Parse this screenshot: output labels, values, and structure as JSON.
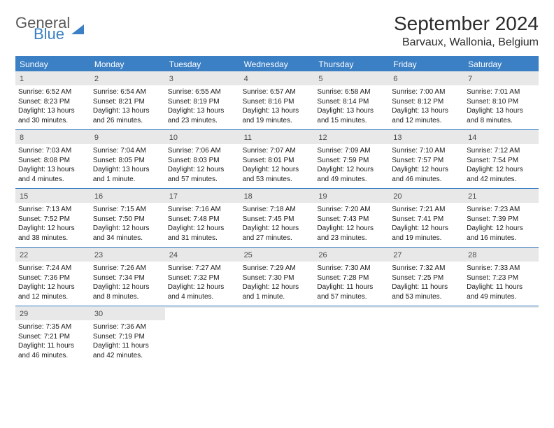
{
  "brand": {
    "line1": "General",
    "line2": "Blue"
  },
  "title": "September 2024",
  "location": "Barvaux, Wallonia, Belgium",
  "colors": {
    "accent": "#3b7fc4",
    "header_text": "#ffffff",
    "daynum_bg": "#e8e8e8",
    "text": "#1a1a1a",
    "title_text": "#2b2b2b",
    "background": "#ffffff"
  },
  "typography": {
    "month_title_pt": 28,
    "location_pt": 16,
    "dow_pt": 12,
    "daynum_pt": 11,
    "info_pt": 10
  },
  "layout": {
    "columns": 7,
    "rows": 5
  },
  "days_of_week": [
    "Sunday",
    "Monday",
    "Tuesday",
    "Wednesday",
    "Thursday",
    "Friday",
    "Saturday"
  ],
  "weeks": [
    [
      {
        "n": "1",
        "sunrise": "Sunrise: 6:52 AM",
        "sunset": "Sunset: 8:23 PM",
        "day": "Daylight: 13 hours and 30 minutes."
      },
      {
        "n": "2",
        "sunrise": "Sunrise: 6:54 AM",
        "sunset": "Sunset: 8:21 PM",
        "day": "Daylight: 13 hours and 26 minutes."
      },
      {
        "n": "3",
        "sunrise": "Sunrise: 6:55 AM",
        "sunset": "Sunset: 8:19 PM",
        "day": "Daylight: 13 hours and 23 minutes."
      },
      {
        "n": "4",
        "sunrise": "Sunrise: 6:57 AM",
        "sunset": "Sunset: 8:16 PM",
        "day": "Daylight: 13 hours and 19 minutes."
      },
      {
        "n": "5",
        "sunrise": "Sunrise: 6:58 AM",
        "sunset": "Sunset: 8:14 PM",
        "day": "Daylight: 13 hours and 15 minutes."
      },
      {
        "n": "6",
        "sunrise": "Sunrise: 7:00 AM",
        "sunset": "Sunset: 8:12 PM",
        "day": "Daylight: 13 hours and 12 minutes."
      },
      {
        "n": "7",
        "sunrise": "Sunrise: 7:01 AM",
        "sunset": "Sunset: 8:10 PM",
        "day": "Daylight: 13 hours and 8 minutes."
      }
    ],
    [
      {
        "n": "8",
        "sunrise": "Sunrise: 7:03 AM",
        "sunset": "Sunset: 8:08 PM",
        "day": "Daylight: 13 hours and 4 minutes."
      },
      {
        "n": "9",
        "sunrise": "Sunrise: 7:04 AM",
        "sunset": "Sunset: 8:05 PM",
        "day": "Daylight: 13 hours and 1 minute."
      },
      {
        "n": "10",
        "sunrise": "Sunrise: 7:06 AM",
        "sunset": "Sunset: 8:03 PM",
        "day": "Daylight: 12 hours and 57 minutes."
      },
      {
        "n": "11",
        "sunrise": "Sunrise: 7:07 AM",
        "sunset": "Sunset: 8:01 PM",
        "day": "Daylight: 12 hours and 53 minutes."
      },
      {
        "n": "12",
        "sunrise": "Sunrise: 7:09 AM",
        "sunset": "Sunset: 7:59 PM",
        "day": "Daylight: 12 hours and 49 minutes."
      },
      {
        "n": "13",
        "sunrise": "Sunrise: 7:10 AM",
        "sunset": "Sunset: 7:57 PM",
        "day": "Daylight: 12 hours and 46 minutes."
      },
      {
        "n": "14",
        "sunrise": "Sunrise: 7:12 AM",
        "sunset": "Sunset: 7:54 PM",
        "day": "Daylight: 12 hours and 42 minutes."
      }
    ],
    [
      {
        "n": "15",
        "sunrise": "Sunrise: 7:13 AM",
        "sunset": "Sunset: 7:52 PM",
        "day": "Daylight: 12 hours and 38 minutes."
      },
      {
        "n": "16",
        "sunrise": "Sunrise: 7:15 AM",
        "sunset": "Sunset: 7:50 PM",
        "day": "Daylight: 12 hours and 34 minutes."
      },
      {
        "n": "17",
        "sunrise": "Sunrise: 7:16 AM",
        "sunset": "Sunset: 7:48 PM",
        "day": "Daylight: 12 hours and 31 minutes."
      },
      {
        "n": "18",
        "sunrise": "Sunrise: 7:18 AM",
        "sunset": "Sunset: 7:45 PM",
        "day": "Daylight: 12 hours and 27 minutes."
      },
      {
        "n": "19",
        "sunrise": "Sunrise: 7:20 AM",
        "sunset": "Sunset: 7:43 PM",
        "day": "Daylight: 12 hours and 23 minutes."
      },
      {
        "n": "20",
        "sunrise": "Sunrise: 7:21 AM",
        "sunset": "Sunset: 7:41 PM",
        "day": "Daylight: 12 hours and 19 minutes."
      },
      {
        "n": "21",
        "sunrise": "Sunrise: 7:23 AM",
        "sunset": "Sunset: 7:39 PM",
        "day": "Daylight: 12 hours and 16 minutes."
      }
    ],
    [
      {
        "n": "22",
        "sunrise": "Sunrise: 7:24 AM",
        "sunset": "Sunset: 7:36 PM",
        "day": "Daylight: 12 hours and 12 minutes."
      },
      {
        "n": "23",
        "sunrise": "Sunrise: 7:26 AM",
        "sunset": "Sunset: 7:34 PM",
        "day": "Daylight: 12 hours and 8 minutes."
      },
      {
        "n": "24",
        "sunrise": "Sunrise: 7:27 AM",
        "sunset": "Sunset: 7:32 PM",
        "day": "Daylight: 12 hours and 4 minutes."
      },
      {
        "n": "25",
        "sunrise": "Sunrise: 7:29 AM",
        "sunset": "Sunset: 7:30 PM",
        "day": "Daylight: 12 hours and 1 minute."
      },
      {
        "n": "26",
        "sunrise": "Sunrise: 7:30 AM",
        "sunset": "Sunset: 7:28 PM",
        "day": "Daylight: 11 hours and 57 minutes."
      },
      {
        "n": "27",
        "sunrise": "Sunrise: 7:32 AM",
        "sunset": "Sunset: 7:25 PM",
        "day": "Daylight: 11 hours and 53 minutes."
      },
      {
        "n": "28",
        "sunrise": "Sunrise: 7:33 AM",
        "sunset": "Sunset: 7:23 PM",
        "day": "Daylight: 11 hours and 49 minutes."
      }
    ],
    [
      {
        "n": "29",
        "sunrise": "Sunrise: 7:35 AM",
        "sunset": "Sunset: 7:21 PM",
        "day": "Daylight: 11 hours and 46 minutes."
      },
      {
        "n": "30",
        "sunrise": "Sunrise: 7:36 AM",
        "sunset": "Sunset: 7:19 PM",
        "day": "Daylight: 11 hours and 42 minutes."
      },
      {
        "n": "",
        "sunrise": "",
        "sunset": "",
        "day": ""
      },
      {
        "n": "",
        "sunrise": "",
        "sunset": "",
        "day": ""
      },
      {
        "n": "",
        "sunrise": "",
        "sunset": "",
        "day": ""
      },
      {
        "n": "",
        "sunrise": "",
        "sunset": "",
        "day": ""
      },
      {
        "n": "",
        "sunrise": "",
        "sunset": "",
        "day": ""
      }
    ]
  ]
}
